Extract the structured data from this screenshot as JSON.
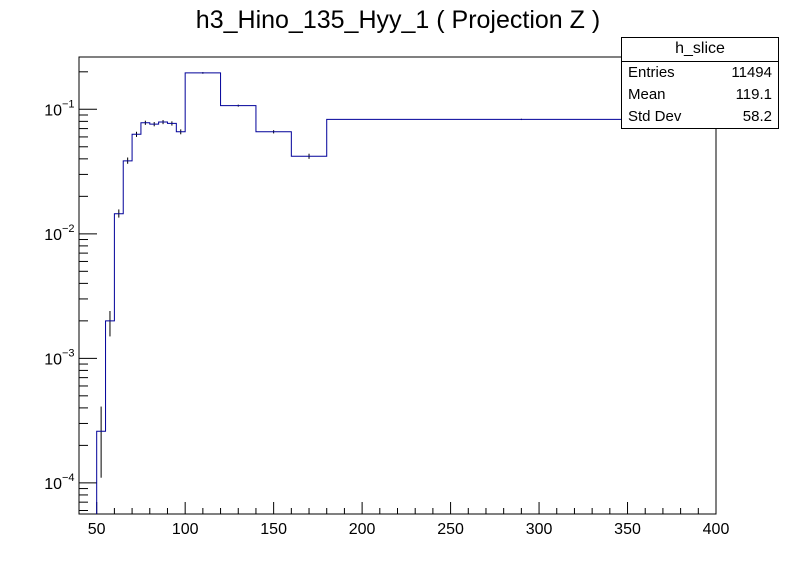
{
  "chart_data": {
    "type": "histogram",
    "title": "h3_Hino_135_Hyy_1 ( Projection Z )",
    "xlabel": "",
    "ylabel": "",
    "xlim": [
      40,
      400
    ],
    "ylim_log": [
      -4.25,
      -0.58
    ],
    "yscale": "log",
    "x_tick_labels": [
      "50",
      "100",
      "150",
      "200",
      "250",
      "300",
      "350",
      "400"
    ],
    "x_tick_values": [
      50,
      100,
      150,
      200,
      250,
      300,
      350,
      400
    ],
    "y_ticks": [
      {
        "base": "10",
        "exp": "−4",
        "value": 0.0001
      },
      {
        "base": "10",
        "exp": "−3",
        "value": 0.001
      },
      {
        "base": "10",
        "exp": "−2",
        "value": 0.01
      },
      {
        "base": "10",
        "exp": "−1",
        "value": 0.1
      }
    ],
    "bins": [
      {
        "lo": 50,
        "hi": 55,
        "y": 0.00026,
        "err_lo": 0.00011,
        "err_hi": 0.00041
      },
      {
        "lo": 55,
        "hi": 60,
        "y": 0.002,
        "err_lo": 0.0015,
        "err_hi": 0.0024
      },
      {
        "lo": 60,
        "hi": 65,
        "y": 0.0145,
        "err_lo": 0.0135,
        "err_hi": 0.0157
      },
      {
        "lo": 65,
        "hi": 70,
        "y": 0.0385,
        "err_lo": 0.0365,
        "err_hi": 0.041
      },
      {
        "lo": 70,
        "hi": 75,
        "y": 0.063,
        "err_lo": 0.06,
        "err_hi": 0.066
      },
      {
        "lo": 75,
        "hi": 80,
        "y": 0.078,
        "err_lo": 0.075,
        "err_hi": 0.081
      },
      {
        "lo": 80,
        "hi": 85,
        "y": 0.076,
        "err_lo": 0.073,
        "err_hi": 0.079
      },
      {
        "lo": 85,
        "hi": 90,
        "y": 0.079,
        "err_lo": 0.076,
        "err_hi": 0.082
      },
      {
        "lo": 90,
        "hi": 95,
        "y": 0.077,
        "err_lo": 0.074,
        "err_hi": 0.08
      },
      {
        "lo": 95,
        "hi": 100,
        "y": 0.066,
        "err_lo": 0.063,
        "err_hi": 0.069
      },
      {
        "lo": 100,
        "hi": 120,
        "y": 0.196,
        "err_lo": 0.193,
        "err_hi": 0.199
      },
      {
        "lo": 120,
        "hi": 140,
        "y": 0.107,
        "err_lo": 0.105,
        "err_hi": 0.109
      },
      {
        "lo": 140,
        "hi": 160,
        "y": 0.066,
        "err_lo": 0.064,
        "err_hi": 0.068
      },
      {
        "lo": 160,
        "hi": 180,
        "y": 0.042,
        "err_lo": 0.04,
        "err_hi": 0.044
      },
      {
        "lo": 180,
        "hi": 400,
        "y": 0.083,
        "err_lo": 0.082,
        "err_hi": 0.084
      }
    ],
    "line_color": "#000099",
    "grid": false
  },
  "stats": {
    "name": "h_slice",
    "entries_label": "Entries",
    "entries_value": "11494",
    "mean_label": "Mean",
    "mean_value": "119.1",
    "std_label": "Std Dev",
    "std_value": "58.2"
  }
}
